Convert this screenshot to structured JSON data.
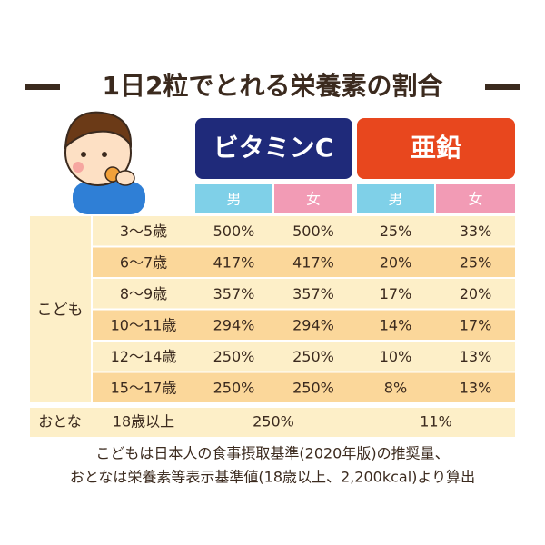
{
  "title": "1日2粒でとれる栄養素の割合",
  "table": {
    "groups": [
      "ビタミンC",
      "亜鉛"
    ],
    "sexes": [
      "男",
      "女",
      "男",
      "女"
    ],
    "row_group": "こども",
    "rows": [
      [
        "3〜5歳",
        "500%",
        "500%",
        "25%",
        "33%"
      ],
      [
        "6〜7歳",
        "417%",
        "417%",
        "20%",
        "25%"
      ],
      [
        "8〜9歳",
        "357%",
        "357%",
        "17%",
        "20%"
      ],
      [
        "10〜11歳",
        "294%",
        "294%",
        "14%",
        "17%"
      ],
      [
        "12〜14歳",
        "250%",
        "250%",
        "10%",
        "13%"
      ],
      [
        "15〜17歳",
        "250%",
        "250%",
        "8%",
        "13%"
      ]
    ],
    "adult": {
      "label": "おとな",
      "age": "18歳以上",
      "vitamin_c": "250%",
      "zinc": "11%"
    }
  },
  "footnote": [
    "こどもは日本人の食事摂取基準(2020年版)の推奨量、",
    "おとなは栄養素等表示基準値(18歳以上、2,200kcal)より算出"
  ]
}
